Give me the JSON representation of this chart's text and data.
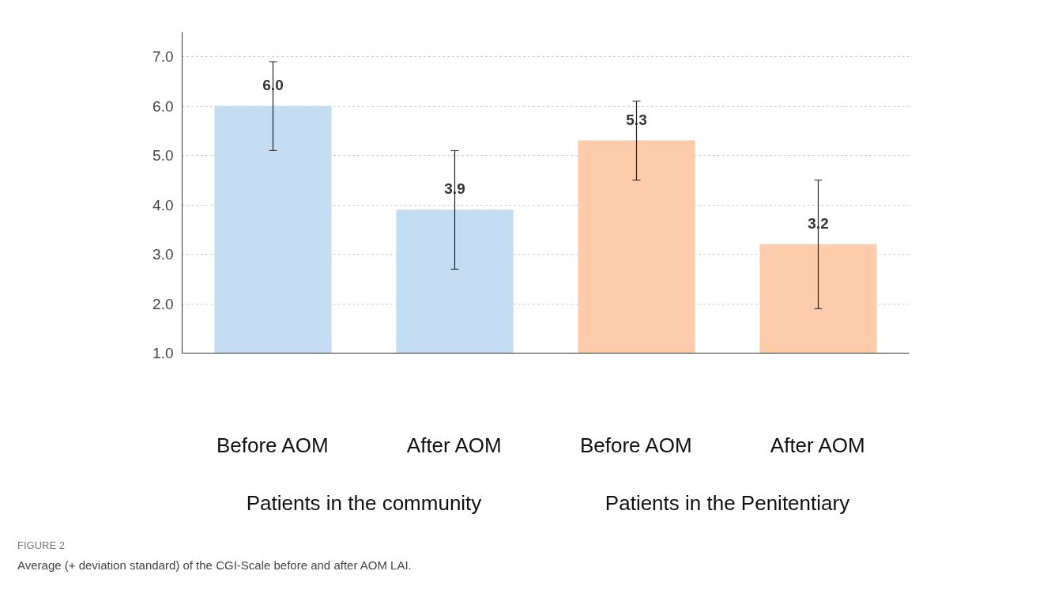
{
  "chart_data": {
    "type": "bar",
    "categories": [
      "Before AOM",
      "After AOM",
      "Before AOM",
      "After AOM"
    ],
    "values": [
      6.0,
      3.9,
      5.3,
      3.2
    ],
    "colors": [
      "#c5ddf3",
      "#c5ddf3",
      "#fdcdab",
      "#fdcdab"
    ],
    "errors": [
      [
        5.1,
        6.9
      ],
      [
        2.7,
        5.1
      ],
      [
        4.5,
        6.1
      ],
      [
        1.9,
        4.5
      ]
    ],
    "value_labels": [
      "6.0",
      "3.9",
      "5.3",
      "3.2"
    ],
    "ylim": [
      1,
      7.5
    ],
    "yticks": [
      {
        "value": 1,
        "label": "1.0"
      },
      {
        "value": 2,
        "label": "2.0"
      },
      {
        "value": 3,
        "label": "3.0"
      },
      {
        "value": 4,
        "label": "4.0"
      },
      {
        "value": 5,
        "label": "5.0"
      },
      {
        "value": 6,
        "label": "6.0"
      },
      {
        "value": 7,
        "label": "7.0"
      }
    ],
    "grid": "y",
    "annotations": [
      "Patients in the community",
      "Patients in the Penitentiary",
      "FIGURE 2",
      "Average (+ deviation standard) of the CGI-Scale before and after AOM LAI."
    ]
  }
}
